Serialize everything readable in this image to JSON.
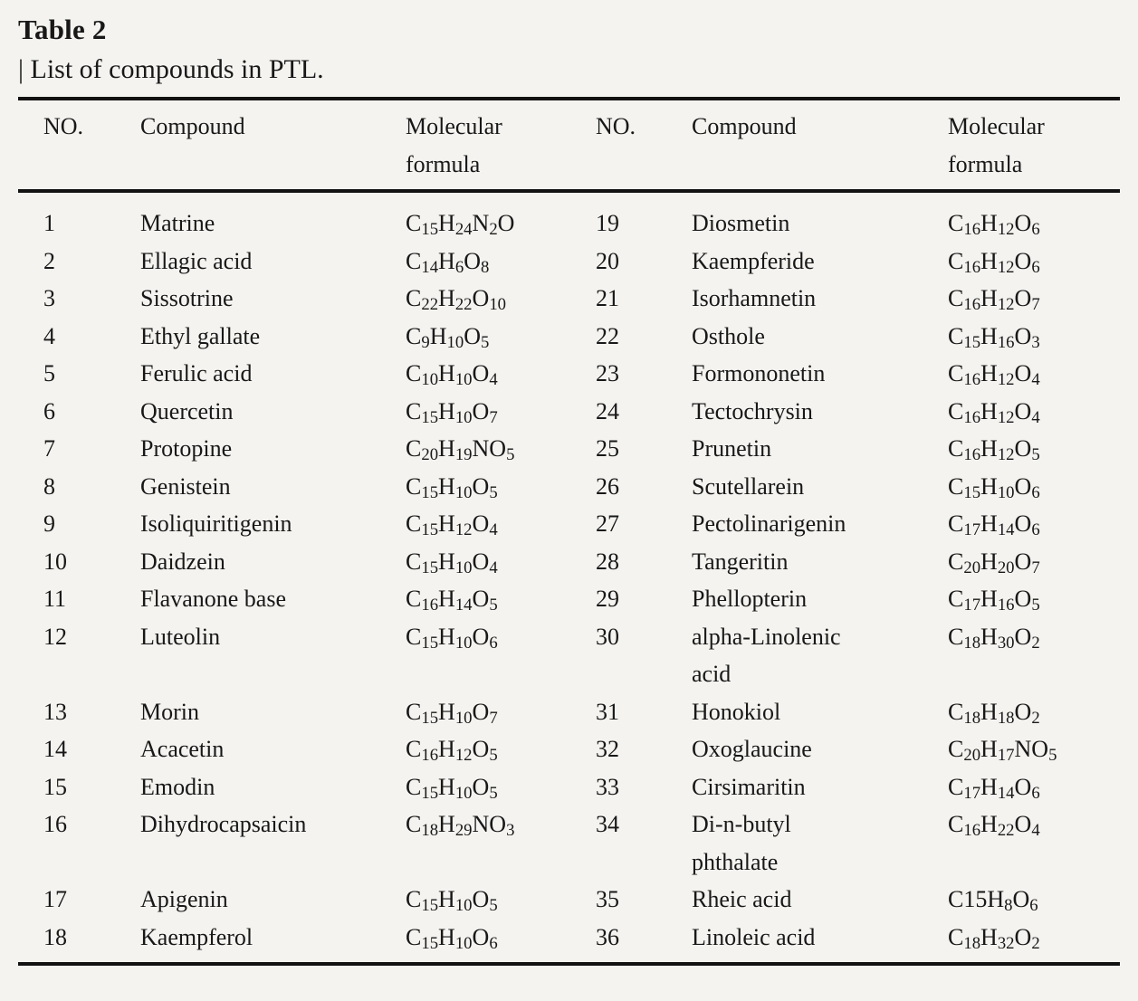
{
  "page": {
    "title": "Table 2",
    "subtitle": "| List of compounds in PTL."
  },
  "colors": {
    "background": "#f4f3f0",
    "text": "#181818",
    "rule": "#121212"
  },
  "table": {
    "columns": [
      "NO.",
      "Compound",
      "Molecular\nformula",
      "NO.",
      "Compound",
      "Molecular\nformula"
    ],
    "column_kinds": [
      "no-left",
      "compound",
      "formula",
      "no-right",
      "compound",
      "formula"
    ],
    "rows": [
      [
        "1",
        "Matrine",
        "C~15~H~24~N~2~O",
        "19",
        "Diosmetin",
        "C~16~H~12~O~6~"
      ],
      [
        "2",
        "Ellagic acid",
        "C~14~H~6~O~8~",
        "20",
        "Kaempferide",
        "C~16~H~12~O~6~"
      ],
      [
        "3",
        "Sissotrine",
        "C~22~H~22~O~10~",
        "21",
        "Isorhamnetin",
        "C~16~H~12~O~7~"
      ],
      [
        "4",
        "Ethyl gallate",
        "C~9~H~10~O~5~",
        "22",
        "Osthole",
        "C~15~H~16~O~3~"
      ],
      [
        "5",
        "Ferulic acid",
        "C~10~H~10~O~4~",
        "23",
        "Formononetin",
        "C~16~H~12~O~4~"
      ],
      [
        "6",
        "Quercetin",
        "C~15~H~10~O~7~",
        "24",
        "Tectochrysin",
        "C~16~H~12~O~4~"
      ],
      [
        "7",
        "Protopine",
        "C~20~H~19~NO~5~",
        "25",
        "Prunetin",
        "C~16~H~12~O~5~"
      ],
      [
        "8",
        "Genistein",
        "C~15~H~10~O~5~",
        "26",
        "Scutellarein",
        "C~15~H~10~O~6~"
      ],
      [
        "9",
        "Isoliquiritigenin",
        "C~15~H~12~O~4~",
        "27",
        "Pectolinarigenin",
        "C~17~H~14~O~6~"
      ],
      [
        "10",
        "Daidzein",
        "C~15~H~10~O~4~",
        "28",
        "Tangeritin",
        "C~20~H~20~O~7~"
      ],
      [
        "11",
        "Flavanone base",
        "C~16~H~14~O~5~",
        "29",
        "Phellopterin",
        "C~17~H~16~O~5~"
      ],
      [
        "12",
        "Luteolin",
        "C~15~H~10~O~6~",
        "30",
        "alpha-Linolenic\nacid",
        "C~18~H~30~O~2~"
      ],
      [
        "13",
        "Morin",
        "C~15~H~10~O~7~",
        "31",
        "Honokiol",
        "C~18~H~18~O~2~"
      ],
      [
        "14",
        "Acacetin",
        "C~16~H~12~O~5~",
        "32",
        "Oxoglaucine",
        "C~20~H~17~NO~5~"
      ],
      [
        "15",
        "Emodin",
        "C~15~H~10~O~5~",
        "33",
        "Cirsimaritin",
        "C~17~H~14~O~6~"
      ],
      [
        "16",
        "Dihydrocapsaicin",
        "C~18~H~29~NO~3~",
        "34",
        "Di-n-butyl\nphthalate",
        "C~16~H~22~O~4~"
      ],
      [
        "17",
        "Apigenin",
        "C~15~H~10~O~5~",
        "35",
        "Rheic acid",
        "C15H~8~O~6~"
      ],
      [
        "18",
        "Kaempferol",
        "C~15~H~10~O~6~",
        "36",
        "Linoleic acid",
        "C~18~H~32~O~2~"
      ]
    ]
  }
}
